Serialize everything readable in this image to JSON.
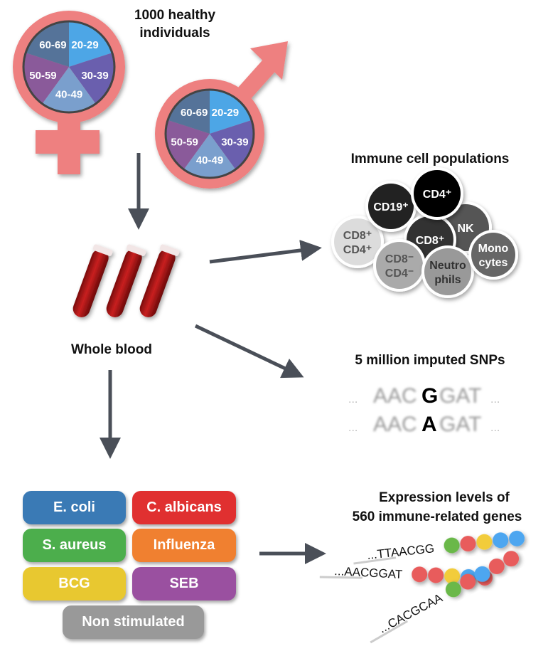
{
  "cohort": {
    "title_line1": "1000 healthy",
    "title_line2": "individuals"
  },
  "age_groups": [
    {
      "label": "20-29",
      "color": "#4da6e6"
    },
    {
      "label": "30-39",
      "color": "#6a5fae"
    },
    {
      "label": "40-49",
      "color": "#7a9fcd"
    },
    {
      "label": "50-59",
      "color": "#8a5a9a"
    },
    {
      "label": "60-69",
      "color": "#557399"
    }
  ],
  "symbol_color": "#ee8080",
  "arrow_color": "#4a4f58",
  "blood": {
    "label": "Whole blood",
    "tube_color": "#b01818"
  },
  "immune": {
    "title": "Immune cell populations",
    "cells": [
      {
        "lines": [
          "CD8⁺",
          "CD4⁺"
        ],
        "fill": "#dcdcdc",
        "text": "#555555"
      },
      {
        "lines": [
          "CD19⁺"
        ],
        "fill": "#222222",
        "text": "#ffffff"
      },
      {
        "lines": [
          "NK"
        ],
        "fill": "#555555",
        "text": "#ffffff"
      },
      {
        "lines": [
          "CD8⁺"
        ],
        "fill": "#333333",
        "text": "#ffffff"
      },
      {
        "lines": [
          "CD4⁺"
        ],
        "fill": "#000000",
        "text": "#ffffff"
      },
      {
        "lines": [
          "CD8⁻",
          "CD4⁻"
        ],
        "fill": "#aaaaaa",
        "text": "#555555"
      },
      {
        "lines": [
          "Neutro",
          "phils"
        ],
        "fill": "#999999",
        "text": "#333333"
      },
      {
        "lines": [
          "Mono",
          "cytes"
        ],
        "fill": "#666666",
        "text": "#ffffff"
      }
    ]
  },
  "snps": {
    "title": "5 million imputed SNPs",
    "seq1": {
      "pre": "AACG",
      "pre_plain": "AAC",
      "allele": "G",
      "post": "GAT"
    },
    "seq2": {
      "pre_plain": "AAC",
      "allele": "A",
      "post": "GAT"
    },
    "ellipsis": "..."
  },
  "stimuli": [
    {
      "label": "E. coli",
      "color": "#3a7ab5"
    },
    {
      "label": "C. albicans",
      "color": "#e03030"
    },
    {
      "label": "S. aureus",
      "color": "#4cae4c"
    },
    {
      "label": "Influenza",
      "color": "#f08030"
    },
    {
      "label": "BCG",
      "color": "#e8c830"
    },
    {
      "label": "SEB",
      "color": "#9a50a0"
    },
    {
      "label": "Non stimulated",
      "color": "#999999"
    }
  ],
  "expression": {
    "title_line1": "Expression levels of",
    "title_line2": "560 immune-related genes",
    "strands": [
      {
        "seq": "...TTAACGG",
        "beads": [
          "#6ab84a",
          "#e85c5c",
          "#f2cc3a",
          "#4da6f0",
          "#4da6f0"
        ]
      },
      {
        "seq": "...AACGGAT",
        "beads": [
          "#e85c5c",
          "#e85c5c",
          "#f2cc3a",
          "#4da6f0",
          "#e85c5c"
        ]
      },
      {
        "seq": "...CACGCAA",
        "beads": [
          "#6ab84a",
          "#e85c5c",
          "#4da6f0",
          "#e85c5c",
          "#e85c5c"
        ]
      }
    ]
  }
}
